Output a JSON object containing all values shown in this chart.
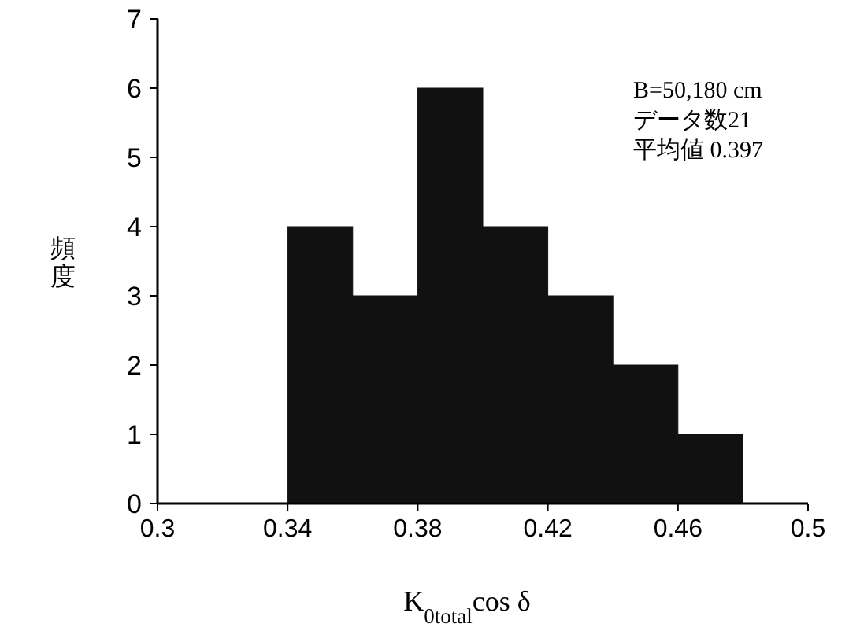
{
  "chart_data": {
    "type": "histogram",
    "xlabel": "K$_{0total}$cos δ",
    "ylabel": "頻度",
    "bins": [
      0.34,
      0.36,
      0.38,
      0.4,
      0.42,
      0.44,
      0.46,
      0.48
    ],
    "values": [
      4,
      3,
      6,
      4,
      3,
      2,
      1
    ],
    "color": "#111111",
    "xlim": [
      0.3,
      0.5
    ],
    "ylim": [
      0,
      7
    ],
    "xticks": [
      0.3,
      0.34,
      0.38,
      0.42,
      0.46,
      0.5
    ],
    "yticks": [
      0,
      1,
      2,
      3,
      4,
      5,
      6,
      7
    ],
    "annotations": [
      "B=50,180 cm",
      "データ数21",
      "平均値 0.397"
    ]
  }
}
